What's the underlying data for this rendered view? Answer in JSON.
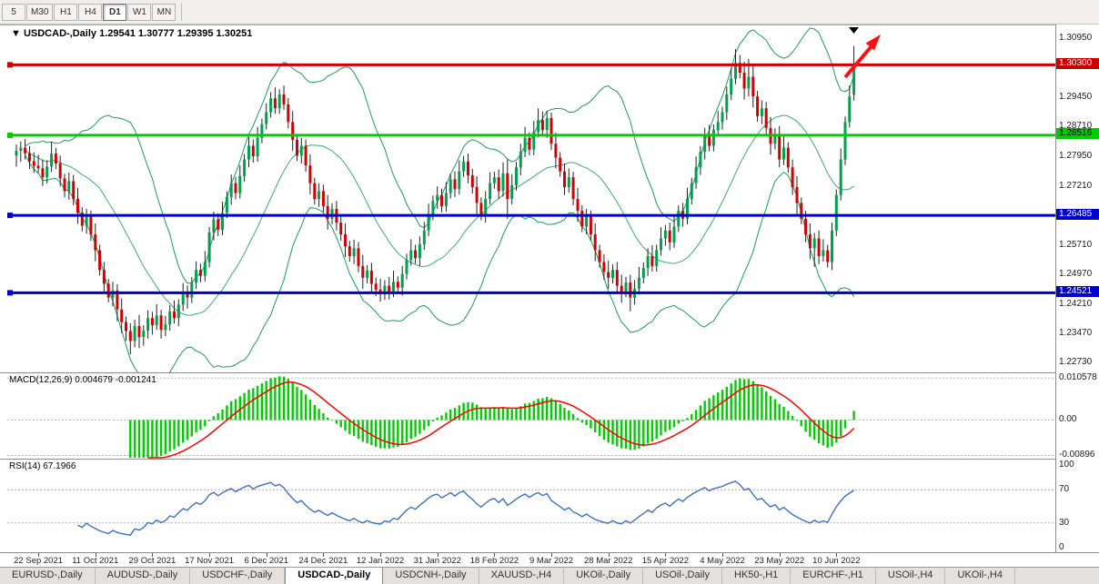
{
  "toolbar": {
    "buttons": [
      {
        "label": "5",
        "active": false
      },
      {
        "label": "M30",
        "active": false
      },
      {
        "label": "H1",
        "active": false
      },
      {
        "label": "H4",
        "active": false
      },
      {
        "label": "D1",
        "active": true
      },
      {
        "label": "W1",
        "active": false
      },
      {
        "label": "MN",
        "active": false
      }
    ]
  },
  "chart": {
    "marker_glyph": "▼",
    "title_symbol": "USDCAD-,Daily",
    "title_values": "1.29541 1.30777 1.29395 1.30251"
  },
  "chart_data": {
    "type": "candlestick",
    "symbol": "USDCAD",
    "timeframe": "Daily",
    "last_bar": {
      "open": 1.29541,
      "high": 1.30777,
      "low": 1.29395,
      "close": 1.30251
    },
    "y_axis": {
      "min": 1.2248,
      "max": 1.313,
      "tick_labels": [
        "1.30950",
        "1.29450",
        "1.28710",
        "1.27950",
        "1.27210",
        "1.25710",
        "1.24970",
        "1.24210",
        "1.23470",
        "1.22730"
      ]
    },
    "x_axis": {
      "tick_labels": [
        "22 Sep 2021",
        "11 Oct 2021",
        "29 Oct 2021",
        "17 Nov 2021",
        "6 Dec 2021",
        "24 Dec 2021",
        "12 Jan 2022",
        "31 Jan 2022",
        "18 Feb 2022",
        "9 Mar 2022",
        "28 Mar 2022",
        "15 Apr 2022",
        "4 May 2022",
        "23 May 2022",
        "10 Jun 2022"
      ],
      "first_tick_candle_index": 5,
      "candles_per_tick": 13
    },
    "horizontal_lines": [
      {
        "price": 1.303,
        "label": "1.30300",
        "color": "#CC0000",
        "text_color": "#FFFFFF",
        "width": 3
      },
      {
        "price": 1.28516,
        "label": "1.28516",
        "color": "#00CC00",
        "text_color": "#000000",
        "width": 3
      },
      {
        "price": 1.26485,
        "label": "1.26485",
        "color": "#0000CC",
        "text_color": "#FFFFFF",
        "width": 3
      },
      {
        "price": 1.24521,
        "label": "1.24521",
        "color": "#0000CC",
        "text_color": "#FFFFFF",
        "width": 3
      }
    ],
    "overlays": {
      "bollinger_bands": {
        "period": 20,
        "deviation": 2,
        "color": "#1C9A5E"
      }
    },
    "style": {
      "bull_color": "#00A050",
      "bear_color": "#D40000",
      "wick_color": "#222222"
    },
    "annotations": {
      "trend_arrow": {
        "color": "#FF1010",
        "direction": "up-right"
      },
      "current_bar_marker": "▼"
    },
    "indicators": [
      {
        "name": "MACD",
        "label": "MACD(12,26,9)",
        "values_text": "0.004679 -0.001241",
        "axis_labels": [
          "0.010578",
          "0.00",
          "-0.00896"
        ],
        "axis_values": [
          0.010578,
          0,
          -0.00896
        ],
        "histogram_color": "#00CC00",
        "signal_color": "#FF0000"
      },
      {
        "name": "RSI",
        "label": "RSI(14)",
        "values_text": "67.1966",
        "axis_labels": [
          "100",
          "70",
          "30",
          "0"
        ],
        "axis_values": [
          100,
          70,
          30,
          0
        ],
        "levels": [
          70,
          30
        ],
        "line_color": "#4070C0"
      }
    ],
    "candles_ohlc": [
      [
        1.28,
        1.2828,
        1.2772,
        1.2812
      ],
      [
        1.2812,
        1.2836,
        1.2784,
        1.282
      ],
      [
        1.282,
        1.2842,
        1.279,
        1.2806
      ],
      [
        1.2806,
        1.2824,
        1.2766,
        1.2786
      ],
      [
        1.2786,
        1.2808,
        1.2756,
        1.2774
      ],
      [
        1.2774,
        1.2802,
        1.2756,
        1.2768
      ],
      [
        1.2768,
        1.279,
        1.2723,
        1.2745
      ],
      [
        1.2745,
        1.2788,
        1.2729,
        1.2772
      ],
      [
        1.2772,
        1.2835,
        1.2758,
        1.2805
      ],
      [
        1.2805,
        1.2819,
        1.2766,
        1.278
      ],
      [
        1.278,
        1.28,
        1.2722,
        1.2742
      ],
      [
        1.2742,
        1.2754,
        1.2694,
        1.271
      ],
      [
        1.271,
        1.2757,
        1.2688,
        1.2735
      ],
      [
        1.2735,
        1.2751,
        1.2674,
        1.269
      ],
      [
        1.269,
        1.2718,
        1.2627,
        1.2655
      ],
      [
        1.2655,
        1.2669,
        1.2608,
        1.2622
      ],
      [
        1.2622,
        1.2665,
        1.2602,
        1.2645
      ],
      [
        1.2645,
        1.2661,
        1.2584,
        1.26
      ],
      [
        1.26,
        1.2628,
        1.2532,
        1.256
      ],
      [
        1.256,
        1.2574,
        1.2496,
        1.251
      ],
      [
        1.251,
        1.253,
        1.2455,
        1.2475
      ],
      [
        1.2475,
        1.2487,
        1.2428,
        1.244
      ],
      [
        1.244,
        1.248,
        1.2418,
        1.2458
      ],
      [
        1.2458,
        1.2474,
        1.238,
        1.241
      ],
      [
        1.241,
        1.2438,
        1.235,
        1.2378
      ],
      [
        1.2378,
        1.2392,
        1.233,
        1.2355
      ],
      [
        1.2355,
        1.2375,
        1.2296,
        1.233
      ],
      [
        1.233,
        1.2384,
        1.2314,
        1.2368
      ],
      [
        1.2368,
        1.2396,
        1.2312,
        1.234
      ],
      [
        1.234,
        1.237,
        1.2318,
        1.2356
      ],
      [
        1.2356,
        1.2408,
        1.2336,
        1.2388
      ],
      [
        1.2388,
        1.2404,
        1.2346,
        1.237
      ],
      [
        1.237,
        1.2423,
        1.2358,
        1.2395
      ],
      [
        1.2395,
        1.2409,
        1.2336,
        1.2358
      ],
      [
        1.2358,
        1.2394,
        1.2342,
        1.2372
      ],
      [
        1.2372,
        1.2421,
        1.2356,
        1.2405
      ],
      [
        1.2405,
        1.2433,
        1.2374,
        1.2388
      ],
      [
        1.2388,
        1.2436,
        1.2368,
        1.2422
      ],
      [
        1.2422,
        1.2477,
        1.2406,
        1.2455
      ],
      [
        1.2455,
        1.2471,
        1.2412,
        1.244
      ],
      [
        1.244,
        1.2492,
        1.2426,
        1.2478
      ],
      [
        1.2478,
        1.2532,
        1.2462,
        1.251
      ],
      [
        1.251,
        1.2526,
        1.2479,
        1.2495
      ],
      [
        1.2495,
        1.2558,
        1.2481,
        1.253
      ],
      [
        1.253,
        1.2619,
        1.2516,
        1.2605
      ],
      [
        1.2605,
        1.2658,
        1.2585,
        1.2638
      ],
      [
        1.2638,
        1.2654,
        1.2596,
        1.2612
      ],
      [
        1.2612,
        1.2683,
        1.2598,
        1.2655
      ],
      [
        1.2655,
        1.2709,
        1.2641,
        1.2695
      ],
      [
        1.2695,
        1.2752,
        1.2675,
        1.273
      ],
      [
        1.273,
        1.2746,
        1.2689,
        1.2705
      ],
      [
        1.2705,
        1.2776,
        1.2691,
        1.2748
      ],
      [
        1.2748,
        1.2804,
        1.2734,
        1.279
      ],
      [
        1.279,
        1.2847,
        1.277,
        1.2825
      ],
      [
        1.2825,
        1.2841,
        1.2782,
        1.2798
      ],
      [
        1.2798,
        1.2873,
        1.2784,
        1.2845
      ],
      [
        1.2845,
        1.2894,
        1.2831,
        1.288
      ],
      [
        1.288,
        1.2932,
        1.2866,
        1.291
      ],
      [
        1.291,
        1.2961,
        1.2896,
        1.2945
      ],
      [
        1.2945,
        1.2973,
        1.2906,
        1.292
      ],
      [
        1.292,
        1.2968,
        1.2906,
        1.2955
      ],
      [
        1.2955,
        1.2977,
        1.2916,
        1.293
      ],
      [
        1.293,
        1.2946,
        1.2869,
        1.2885
      ],
      [
        1.2885,
        1.2913,
        1.2812,
        1.284
      ],
      [
        1.284,
        1.2854,
        1.2786,
        1.28
      ],
      [
        1.28,
        1.2845,
        1.278,
        1.2825
      ],
      [
        1.2825,
        1.2841,
        1.2759,
        1.2775
      ],
      [
        1.2775,
        1.2803,
        1.2702,
        1.273
      ],
      [
        1.273,
        1.2744,
        1.2676,
        1.269
      ],
      [
        1.269,
        1.273,
        1.267,
        1.271
      ],
      [
        1.271,
        1.2726,
        1.2656,
        1.2672
      ],
      [
        1.2672,
        1.27,
        1.2612,
        1.264
      ],
      [
        1.264,
        1.2679,
        1.2626,
        1.2665
      ],
      [
        1.2665,
        1.2685,
        1.261,
        1.263
      ],
      [
        1.263,
        1.2646,
        1.2584,
        1.26
      ],
      [
        1.26,
        1.2628,
        1.2542,
        1.257
      ],
      [
        1.257,
        1.2584,
        1.2531,
        1.2545
      ],
      [
        1.2545,
        1.2587,
        1.2525,
        1.2565
      ],
      [
        1.2565,
        1.2581,
        1.2504,
        1.252
      ],
      [
        1.252,
        1.2548,
        1.2462,
        1.249
      ],
      [
        1.249,
        1.2522,
        1.2476,
        1.2508
      ],
      [
        1.2508,
        1.2528,
        1.2455,
        1.2475
      ],
      [
        1.2475,
        1.2491,
        1.2444,
        1.246
      ],
      [
        1.246,
        1.2488,
        1.243,
        1.2448
      ],
      [
        1.2448,
        1.2484,
        1.2434,
        1.247
      ],
      [
        1.247,
        1.2492,
        1.2435,
        1.2455
      ],
      [
        1.2455,
        1.2508,
        1.2441,
        1.248
      ],
      [
        1.248,
        1.2494,
        1.2451,
        1.2465
      ],
      [
        1.2465,
        1.252,
        1.2445,
        1.25
      ],
      [
        1.25,
        1.2551,
        1.2486,
        1.2535
      ],
      [
        1.2535,
        1.2588,
        1.2521,
        1.256
      ],
      [
        1.256,
        1.2574,
        1.2526,
        1.254
      ],
      [
        1.254,
        1.2595,
        1.252,
        1.2575
      ],
      [
        1.2575,
        1.2632,
        1.2561,
        1.261
      ],
      [
        1.261,
        1.2678,
        1.2596,
        1.265
      ],
      [
        1.265,
        1.2699,
        1.2636,
        1.2685
      ],
      [
        1.2685,
        1.2722,
        1.2665,
        1.27
      ],
      [
        1.27,
        1.2716,
        1.2656,
        1.2672
      ],
      [
        1.2672,
        1.2733,
        1.2658,
        1.2705
      ],
      [
        1.2705,
        1.2754,
        1.2691,
        1.274
      ],
      [
        1.274,
        1.276,
        1.2695,
        1.2715
      ],
      [
        1.2715,
        1.2788,
        1.2701,
        1.276
      ],
      [
        1.276,
        1.2799,
        1.2746,
        1.2785
      ],
      [
        1.2785,
        1.2805,
        1.273,
        1.275
      ],
      [
        1.275,
        1.2766,
        1.2704,
        1.272
      ],
      [
        1.272,
        1.2748,
        1.2652,
        1.268
      ],
      [
        1.268,
        1.2694,
        1.2636,
        1.265
      ],
      [
        1.265,
        1.271,
        1.263,
        1.269
      ],
      [
        1.269,
        1.2758,
        1.2676,
        1.273
      ],
      [
        1.273,
        1.2759,
        1.2716,
        1.2745
      ],
      [
        1.2745,
        1.2765,
        1.269,
        1.271
      ],
      [
        1.271,
        1.2783,
        1.2696,
        1.2755
      ],
      [
        1.2755,
        1.279,
        1.264,
        1.269
      ],
      [
        1.269,
        1.2753,
        1.2676,
        1.2725
      ],
      [
        1.2725,
        1.2784,
        1.2711,
        1.277
      ],
      [
        1.277,
        1.283,
        1.275,
        1.281
      ],
      [
        1.281,
        1.2873,
        1.2796,
        1.2845
      ],
      [
        1.2845,
        1.2859,
        1.2801,
        1.2815
      ],
      [
        1.2815,
        1.2888,
        1.2801,
        1.286
      ],
      [
        1.286,
        1.292,
        1.2846,
        1.289
      ],
      [
        1.289,
        1.2912,
        1.2849,
        1.2865
      ],
      [
        1.2865,
        1.2913,
        1.2845,
        1.2895
      ],
      [
        1.2895,
        1.2909,
        1.2814,
        1.283
      ],
      [
        1.283,
        1.2858,
        1.2767,
        1.2795
      ],
      [
        1.2795,
        1.2809,
        1.2746,
        1.276
      ],
      [
        1.276,
        1.278,
        1.27,
        1.272
      ],
      [
        1.272,
        1.2767,
        1.2706,
        1.2745
      ],
      [
        1.2745,
        1.2759,
        1.2674,
        1.269
      ],
      [
        1.269,
        1.2718,
        1.2632,
        1.266
      ],
      [
        1.266,
        1.2674,
        1.2606,
        1.262
      ],
      [
        1.262,
        1.2665,
        1.26,
        1.2645
      ],
      [
        1.2645,
        1.2661,
        1.2584,
        1.26
      ],
      [
        1.26,
        1.2628,
        1.2532,
        1.256
      ],
      [
        1.256,
        1.2574,
        1.2516,
        1.253
      ],
      [
        1.253,
        1.255,
        1.2485,
        1.2505
      ],
      [
        1.2505,
        1.2533,
        1.2462,
        1.249
      ],
      [
        1.249,
        1.2524,
        1.2476,
        1.251
      ],
      [
        1.251,
        1.253,
        1.245,
        1.247
      ],
      [
        1.247,
        1.2498,
        1.2427,
        1.2455
      ],
      [
        1.2455,
        1.2492,
        1.2441,
        1.2478
      ],
      [
        1.2478,
        1.2498,
        1.2405,
        1.244
      ],
      [
        1.244,
        1.2484,
        1.2422,
        1.2462
      ],
      [
        1.2462,
        1.2518,
        1.2448,
        1.249
      ],
      [
        1.249,
        1.2529,
        1.2476,
        1.2515
      ],
      [
        1.2515,
        1.2565,
        1.2495,
        1.2545
      ],
      [
        1.2545,
        1.2573,
        1.2506,
        1.252
      ],
      [
        1.252,
        1.2574,
        1.2506,
        1.256
      ],
      [
        1.256,
        1.2618,
        1.2546,
        1.259
      ],
      [
        1.259,
        1.2624,
        1.2571,
        1.261
      ],
      [
        1.261,
        1.263,
        1.256,
        1.258
      ],
      [
        1.258,
        1.2648,
        1.2566,
        1.262
      ],
      [
        1.262,
        1.2674,
        1.2606,
        1.266
      ],
      [
        1.266,
        1.268,
        1.262,
        1.264
      ],
      [
        1.264,
        1.2718,
        1.2626,
        1.269
      ],
      [
        1.269,
        1.2744,
        1.2676,
        1.273
      ],
      [
        1.273,
        1.2798,
        1.2716,
        1.277
      ],
      [
        1.277,
        1.2824,
        1.2751,
        1.281
      ],
      [
        1.281,
        1.287,
        1.279,
        1.285
      ],
      [
        1.285,
        1.2878,
        1.2811,
        1.2825
      ],
      [
        1.2825,
        1.2879,
        1.2811,
        1.2865
      ],
      [
        1.2865,
        1.2913,
        1.2851,
        1.2885
      ],
      [
        1.2885,
        1.2924,
        1.2866,
        1.291
      ],
      [
        1.291,
        1.2975,
        1.289,
        1.2955
      ],
      [
        1.2955,
        1.3023,
        1.2941,
        1.2995
      ],
      [
        1.2995,
        1.307,
        1.2981,
        1.3035
      ],
      [
        1.3035,
        1.3055,
        1.2996,
        1.301
      ],
      [
        1.301,
        1.3038,
        1.2942,
        1.297
      ],
      [
        1.297,
        1.3045,
        1.295,
        1.3
      ],
      [
        1.3,
        1.3028,
        1.2922,
        1.295
      ],
      [
        1.295,
        1.2964,
        1.2886,
        1.29
      ],
      [
        1.29,
        1.294,
        1.288,
        1.292
      ],
      [
        1.292,
        1.2936,
        1.2854,
        1.287
      ],
      [
        1.287,
        1.2898,
        1.2802,
        1.283
      ],
      [
        1.283,
        1.2869,
        1.2816,
        1.2855
      ],
      [
        1.2855,
        1.2875,
        1.277,
        1.279
      ],
      [
        1.279,
        1.2848,
        1.2776,
        1.282
      ],
      [
        1.282,
        1.2834,
        1.2756,
        1.277
      ],
      [
        1.277,
        1.279,
        1.27,
        1.272
      ],
      [
        1.272,
        1.2748,
        1.2652,
        1.268
      ],
      [
        1.268,
        1.2694,
        1.2626,
        1.264
      ],
      [
        1.264,
        1.266,
        1.258,
        1.26
      ],
      [
        1.26,
        1.2628,
        1.2537,
        1.2565
      ],
      [
        1.2565,
        1.2604,
        1.2518,
        1.259
      ],
      [
        1.259,
        1.261,
        1.2525,
        1.2545
      ],
      [
        1.2545,
        1.2588,
        1.2531,
        1.256
      ],
      [
        1.256,
        1.2574,
        1.2516,
        1.253
      ],
      [
        1.253,
        1.263,
        1.251,
        1.261
      ],
      [
        1.261,
        1.2714,
        1.2596,
        1.27
      ],
      [
        1.27,
        1.2818,
        1.2686,
        1.279
      ],
      [
        1.279,
        1.2899,
        1.2776,
        1.2885
      ],
      [
        1.2885,
        1.2978,
        1.2871,
        1.295
      ],
      [
        1.29541,
        1.30777,
        1.29395,
        1.30251
      ]
    ]
  },
  "tab_bar": {
    "tabs": [
      {
        "label": "EURUSD-,Daily",
        "active": false
      },
      {
        "label": "AUDUSD-,Daily",
        "active": false
      },
      {
        "label": "USDCHF-,Daily",
        "active": false
      },
      {
        "label": "USDCAD-,Daily",
        "active": true
      },
      {
        "label": "USDCNH-,Daily",
        "active": false
      },
      {
        "label": "XAUUSD-,H4",
        "active": false
      },
      {
        "label": "UKOil-,Daily",
        "active": false
      },
      {
        "label": "USOil-,Daily",
        "active": false
      },
      {
        "label": "HK50-,H1",
        "active": false
      },
      {
        "label": "EURCHF-,H1",
        "active": false
      },
      {
        "label": "USOil-,H4",
        "active": false
      },
      {
        "label": "UKOil-,H4",
        "active": false
      }
    ]
  }
}
